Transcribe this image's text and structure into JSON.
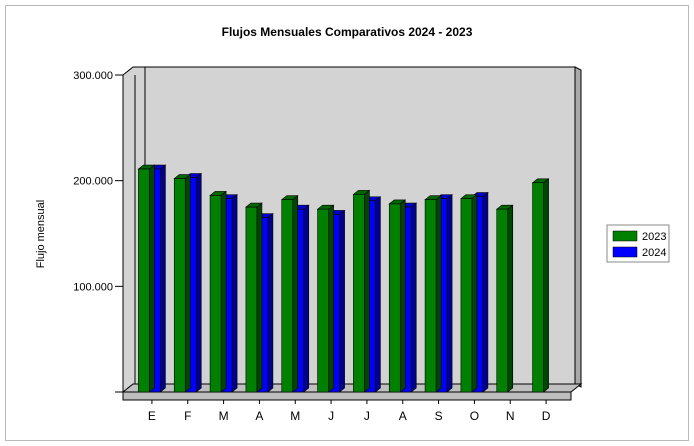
{
  "chart_data": {
    "type": "bar",
    "title": "Flujos Mensuales Comparativos 2024 - 2023",
    "xlabel": "",
    "ylabel": "Flujo mensual",
    "ylim": [
      0,
      300000
    ],
    "yticks": [
      100000,
      200000,
      300000
    ],
    "ytick_labels": [
      "100.000",
      "200.000",
      "300.000"
    ],
    "categories": [
      "E",
      "F",
      "M",
      "A",
      "M",
      "J",
      "J",
      "A",
      "S",
      "O",
      "N",
      "D"
    ],
    "series": [
      {
        "name": "2023",
        "color": "#008000",
        "values": [
          211000,
          202000,
          186000,
          175000,
          182000,
          173000,
          187000,
          178000,
          182000,
          183000,
          173000,
          198000
        ]
      },
      {
        "name": "2024",
        "color": "#0000ff",
        "values": [
          211000,
          203000,
          183000,
          165000,
          173000,
          168000,
          181000,
          175000,
          183000,
          185000,
          null,
          null
        ]
      }
    ],
    "legend_position": "right",
    "grid": false,
    "style": "3d"
  }
}
